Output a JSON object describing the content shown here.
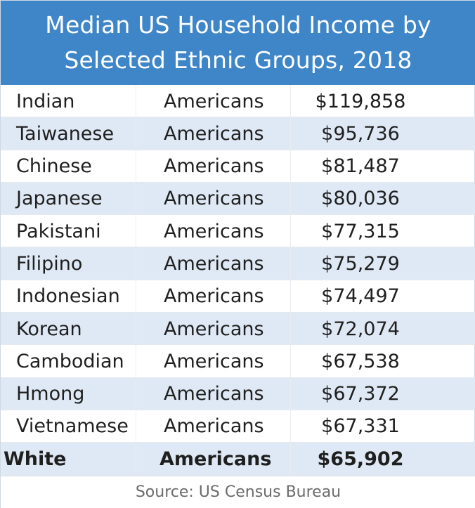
{
  "chart_data": {
    "type": "table",
    "title_lines": [
      "Median US Household Income by",
      "Selected Ethnic Groups, 2018"
    ],
    "rows": [
      {
        "group": "Indian",
        "word": "Americans",
        "income": "$119,858",
        "value": 119858
      },
      {
        "group": "Taiwanese",
        "word": "Americans",
        "income": "$95,736",
        "value": 95736
      },
      {
        "group": "Chinese",
        "word": "Americans",
        "income": "$81,487",
        "value": 81487
      },
      {
        "group": "Japanese",
        "word": "Americans",
        "income": "$80,036",
        "value": 80036
      },
      {
        "group": "Pakistani",
        "word": "Americans",
        "income": "$77,315",
        "value": 77315
      },
      {
        "group": "Filipino",
        "word": "Americans",
        "income": "$75,279",
        "value": 75279
      },
      {
        "group": "Indonesian",
        "word": "Americans",
        "income": "$74,497",
        "value": 74497
      },
      {
        "group": "Korean",
        "word": "Americans",
        "income": "$72,074",
        "value": 72074
      },
      {
        "group": "Cambodian",
        "word": "Americans",
        "income": "$67,538",
        "value": 67538
      },
      {
        "group": "Hmong",
        "word": "Americans",
        "income": "$67,372",
        "value": 67372
      },
      {
        "group": "Vietnamese",
        "word": "Americans",
        "income": "$67,331",
        "value": 67331
      },
      {
        "group": "White",
        "word": "Americans",
        "income": "$65,902",
        "value": 65902,
        "bold": true
      }
    ],
    "source": "Source: US Census Bureau"
  },
  "colors": {
    "header_bg": "#3e86c8",
    "row_alt_bg": "#dfe9f5",
    "text": "#1f1f1f",
    "source_text": "#6b6b6b"
  }
}
